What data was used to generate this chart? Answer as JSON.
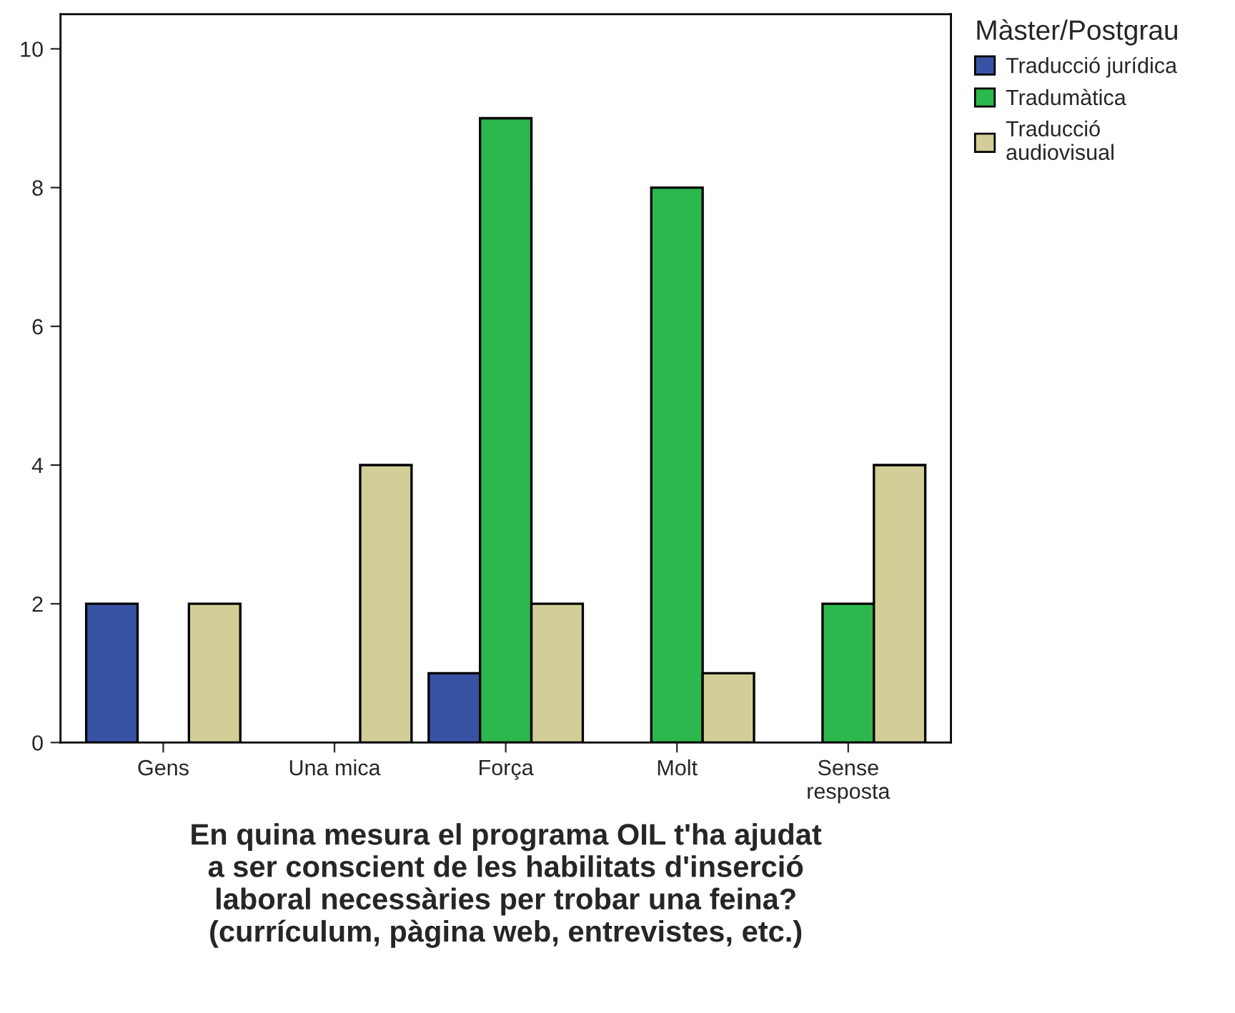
{
  "chart_data": {
    "type": "bar",
    "xlabel": "En quina mesura el programa OIL t'ha ajudat\na ser conscient de les habilitats d'inserció\nlaboral necessàries per trobar una feina?\n(currículum, pàgina web, entrevistes, etc.)",
    "legend_title": "Màster/Postgrau",
    "categories": [
      "Gens",
      "Una mica",
      "Força",
      "Molt",
      "Sense\nresposta"
    ],
    "series": [
      {
        "name": "Traducció jurídica",
        "color": "#3953a4",
        "values": [
          2,
          null,
          1,
          null,
          null
        ]
      },
      {
        "name": "Tradumàtica",
        "color": "#2db84d",
        "values": [
          null,
          null,
          9,
          8,
          2
        ]
      },
      {
        "name": "Traducció\naudiovisual",
        "color": "#d3ce97",
        "values": [
          2,
          4,
          2,
          1,
          4
        ]
      }
    ],
    "ylim": [
      0,
      10.5
    ],
    "yticks": [
      0,
      2,
      4,
      6,
      8,
      10
    ],
    "grid": false,
    "legend": "top right"
  }
}
